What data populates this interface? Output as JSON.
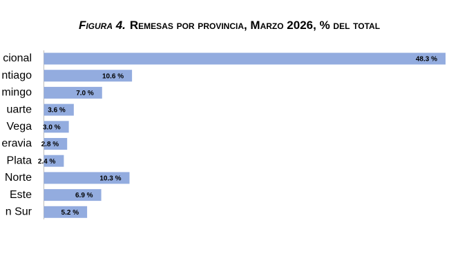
{
  "chart_data": {
    "type": "bar",
    "orientation": "horizontal",
    "figure_label": "Figura 4.",
    "title": "Remesas por provincia, Marzo 2026, % del total",
    "categories": [
      "cional",
      "ntiago",
      "mingo",
      "uarte",
      "Vega",
      "eravia",
      "Plata",
      "Norte",
      "Este",
      "n Sur"
    ],
    "values": [
      48.3,
      10.6,
      7.0,
      3.6,
      3.0,
      2.8,
      2.4,
      10.3,
      6.9,
      5.2
    ],
    "value_labels": [
      "48.3 %",
      "10.6 %",
      "7.0 %",
      "3.6 %",
      "3.0 %",
      "2.8 %",
      "2.4 %",
      "10.3 %",
      "6.9 %",
      "5.2 %"
    ],
    "color": "#93acdf",
    "xlim": [
      0,
      48.3
    ]
  }
}
